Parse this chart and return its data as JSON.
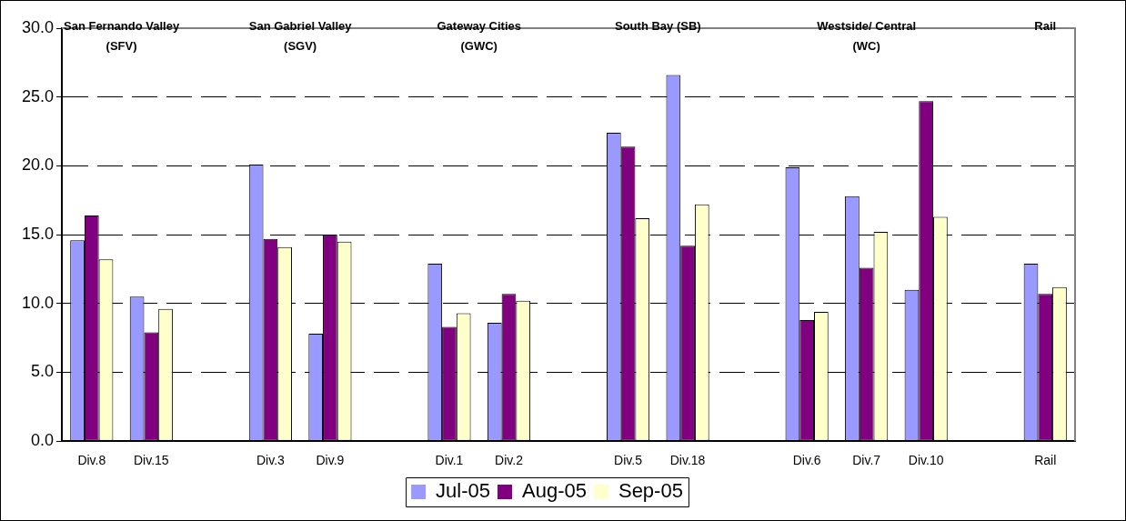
{
  "chart_data": {
    "type": "bar",
    "categories": [
      "Div.8",
      "Div.15",
      null,
      "Div.3",
      "Div.9",
      null,
      "Div.1",
      "Div.2",
      null,
      "Div.5",
      "Div.18",
      null,
      "Div.6",
      "Div.7",
      "Div.10",
      null,
      "Rail"
    ],
    "series": [
      {
        "name": "Jul-05",
        "color": "#9999ff",
        "values": [
          14.6,
          10.5,
          null,
          20.1,
          7.8,
          null,
          12.9,
          8.6,
          null,
          22.4,
          26.6,
          null,
          19.9,
          17.8,
          11.0,
          null,
          12.9
        ]
      },
      {
        "name": "Aug-05",
        "color": "#800080",
        "values": [
          16.4,
          7.9,
          null,
          14.7,
          15.0,
          null,
          8.3,
          10.7,
          null,
          21.4,
          14.2,
          null,
          8.8,
          12.6,
          24.7,
          null,
          10.7
        ]
      },
      {
        "name": "Sep-05",
        "color": "#ffffcc",
        "values": [
          13.2,
          9.6,
          null,
          14.1,
          14.5,
          null,
          9.3,
          10.2,
          null,
          16.2,
          17.2,
          null,
          9.4,
          15.2,
          16.3,
          null,
          11.2
        ]
      }
    ],
    "annotations": [
      "San Fernando Valley\n(SFV)",
      "San Gabriel Valley\n(SGV)",
      "Gateway Cities\n(GWC)",
      "South Bay (SB)",
      "Westside/ Central\n(WC)",
      "Rail"
    ],
    "ylim": [
      0,
      30
    ],
    "yticks": [
      {
        "value": 0,
        "label": "0.0"
      },
      {
        "value": 5,
        "label": "5.0"
      },
      {
        "value": 10,
        "label": "10.0"
      },
      {
        "value": 15,
        "label": "15.0"
      },
      {
        "value": 20,
        "label": "20.0"
      },
      {
        "value": 25,
        "label": "25.0"
      },
      {
        "value": 30,
        "label": "30.0"
      }
    ],
    "grid": "y",
    "line_style": "dashed",
    "legend": "bottom"
  }
}
